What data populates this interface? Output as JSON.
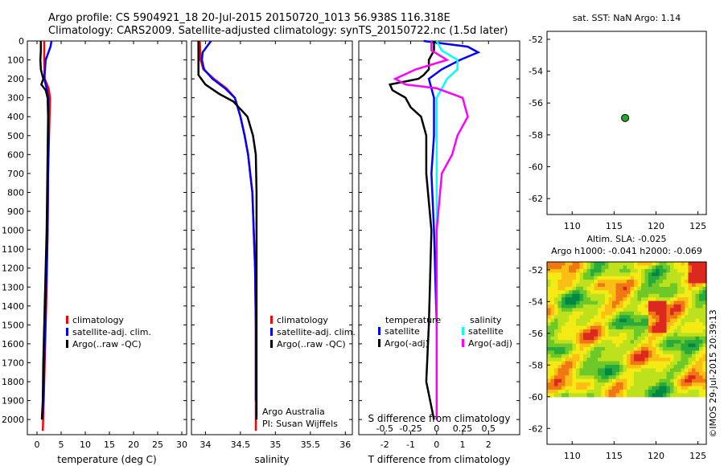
{
  "header": {
    "line1": "Argo profile: CS 5904921_18 20-Jul-2015 20150720_1013 56.938S 116.318E",
    "line2": "Climatology: CARS2009. Satellite-adjusted climatology: synTS_20150722.nc (1.5d later)"
  },
  "colors": {
    "climatology": "#ff0000",
    "satellite": "#0000ff",
    "argo": "#000000",
    "sat_salinity": "#00ffff",
    "argo_salinity": "#ff00ff",
    "float_marker": "#22aa22"
  },
  "chart_data": [
    {
      "id": "temperature",
      "type": "line",
      "xlabel": "temperature (deg C)",
      "ylabel": "",
      "xlim": [
        -2,
        31
      ],
      "ylim": [
        2080,
        0
      ],
      "xticks": [
        0,
        5,
        10,
        15,
        20,
        25,
        30
      ],
      "yticks": [
        0,
        100,
        200,
        300,
        400,
        500,
        600,
        700,
        800,
        900,
        1000,
        1100,
        1200,
        1300,
        1400,
        1500,
        1600,
        1700,
        1800,
        1900,
        2000
      ],
      "legend": [
        "climatology",
        "satellite-adj. clim.",
        "Argo(..raw -QC)"
      ],
      "series": [
        {
          "name": "climatology",
          "points": [
            [
              1.5,
              0
            ],
            [
              1.5,
              100
            ],
            [
              1.6,
              200
            ],
            [
              2.4,
              250
            ],
            [
              2.7,
              300
            ],
            [
              2.6,
              400
            ],
            [
              2.5,
              500
            ],
            [
              2.3,
              700
            ],
            [
              2.2,
              1000
            ],
            [
              2.0,
              1300
            ],
            [
              1.7,
              1600
            ],
            [
              1.4,
              1900
            ],
            [
              1.2,
              2060
            ]
          ]
        },
        {
          "name": "satellite-adj. clim.",
          "points": [
            [
              3.0,
              0
            ],
            [
              2.8,
              30
            ],
            [
              1.8,
              100
            ],
            [
              1.5,
              200
            ],
            [
              2.0,
              250
            ],
            [
              2.3,
              300
            ],
            [
              2.4,
              500
            ],
            [
              2.3,
              700
            ],
            [
              2.2,
              1000
            ],
            [
              1.9,
              1300
            ],
            [
              1.6,
              1600
            ],
            [
              1.3,
              1900
            ],
            [
              1.1,
              2000
            ]
          ]
        },
        {
          "name": "Argo(..raw -QC)",
          "points": [
            [
              0.8,
              0
            ],
            [
              0.8,
              50
            ],
            [
              0.7,
              100
            ],
            [
              0.8,
              150
            ],
            [
              1.3,
              200
            ],
            [
              0.9,
              230
            ],
            [
              1.8,
              260
            ],
            [
              2.2,
              300
            ],
            [
              2.3,
              400
            ],
            [
              2.2,
              600
            ],
            [
              2.1,
              800
            ],
            [
              2.0,
              1000
            ],
            [
              1.8,
              1200
            ],
            [
              1.5,
              1500
            ],
            [
              1.3,
              1700
            ],
            [
              1.2,
              1900
            ],
            [
              1.0,
              2000
            ]
          ]
        }
      ]
    },
    {
      "id": "salinity",
      "type": "line",
      "xlabel": "salinity",
      "ylabel": "",
      "xlim": [
        33.8,
        36.1
      ],
      "ylim": [
        2080,
        0
      ],
      "xticks": [
        34,
        34.5,
        35,
        35.5,
        36
      ],
      "legend": [
        "climatology",
        "satellite-adj. clim.",
        "Argo(..raw -QC)"
      ],
      "annotation": [
        "Argo Australia",
        "PI: Susan Wijffels"
      ],
      "series": [
        {
          "name": "climatology",
          "points": [
            [
              33.92,
              0
            ],
            [
              33.93,
              100
            ],
            [
              33.97,
              150
            ],
            [
              34.12,
              200
            ],
            [
              34.3,
              250
            ],
            [
              34.42,
              300
            ],
            [
              34.5,
              400
            ],
            [
              34.56,
              500
            ],
            [
              34.61,
              600
            ],
            [
              34.64,
              700
            ],
            [
              34.67,
              800
            ],
            [
              34.69,
              1000
            ],
            [
              34.71,
              1200
            ],
            [
              34.72,
              1500
            ],
            [
              34.72,
              2060
            ]
          ]
        },
        {
          "name": "satellite-adj. clim.",
          "points": [
            [
              34.08,
              0
            ],
            [
              34.02,
              30
            ],
            [
              33.96,
              60
            ],
            [
              33.95,
              100
            ],
            [
              33.98,
              150
            ],
            [
              34.1,
              200
            ],
            [
              34.28,
              250
            ],
            [
              34.42,
              300
            ],
            [
              34.5,
              400
            ],
            [
              34.56,
              500
            ],
            [
              34.61,
              600
            ],
            [
              34.64,
              700
            ],
            [
              34.67,
              800
            ],
            [
              34.69,
              1000
            ],
            [
              34.71,
              1200
            ],
            [
              34.72,
              1500
            ],
            [
              34.72,
              1900
            ]
          ]
        },
        {
          "name": "Argo(..raw -QC)",
          "points": [
            [
              33.9,
              0
            ],
            [
              33.9,
              100
            ],
            [
              33.9,
              180
            ],
            [
              34.0,
              230
            ],
            [
              34.2,
              280
            ],
            [
              34.4,
              320
            ],
            [
              34.6,
              400
            ],
            [
              34.68,
              500
            ],
            [
              34.72,
              600
            ],
            [
              34.73,
              800
            ],
            [
              34.73,
              1000
            ],
            [
              34.73,
              1500
            ],
            [
              34.73,
              2000
            ]
          ]
        }
      ]
    },
    {
      "id": "differences",
      "type": "line",
      "xlabel": "T difference from climatology",
      "xlabel_top": "S difference from climatology",
      "xlim": [
        -3,
        3.2
      ],
      "ylim": [
        2080,
        0
      ],
      "xticks": [
        -2,
        -1,
        0,
        1,
        2
      ],
      "xticks_s": [
        "-0.5",
        "-0.25",
        "0",
        "0.25",
        "0.5"
      ],
      "legend_headers": [
        "temperature",
        "salinity"
      ],
      "legend": [
        "satellite",
        "Argo(-adj)",
        "satellite",
        "Argo(-adj)"
      ],
      "series": [
        {
          "name": "satellite",
          "quantity": "temperature",
          "points": [
            [
              -0.5,
              0
            ],
            [
              1.2,
              30
            ],
            [
              1.6,
              60
            ],
            [
              0.9,
              100
            ],
            [
              0.2,
              150
            ],
            [
              -0.3,
              200
            ],
            [
              -0.2,
              250
            ],
            [
              -0.1,
              300
            ],
            [
              -0.1,
              500
            ],
            [
              -0.2,
              700
            ],
            [
              -0.1,
              1000
            ],
            [
              0.0,
              1500
            ],
            [
              0.0,
              2000
            ]
          ]
        },
        {
          "name": "Argo(-adj)",
          "quantity": "temperature",
          "points": [
            [
              -0.1,
              0
            ],
            [
              -0.1,
              50
            ],
            [
              -0.3,
              100
            ],
            [
              -0.3,
              150
            ],
            [
              -0.5,
              180
            ],
            [
              -0.7,
              200
            ],
            [
              -1.8,
              230
            ],
            [
              -1.7,
              260
            ],
            [
              -1.2,
              300
            ],
            [
              -1.0,
              350
            ],
            [
              -0.6,
              400
            ],
            [
              -0.4,
              500
            ],
            [
              -0.4,
              700
            ],
            [
              -0.2,
              1000
            ],
            [
              -0.3,
              1500
            ],
            [
              -0.4,
              1800
            ],
            [
              -0.1,
              2000
            ]
          ]
        },
        {
          "name": "satellite",
          "quantity": "salinity",
          "points": [
            [
              0.0,
              0
            ],
            [
              0.05,
              50
            ],
            [
              0.2,
              100
            ],
            [
              0.2,
              150
            ],
            [
              0.1,
              200
            ],
            [
              0.0,
              300
            ],
            [
              0.0,
              500
            ],
            [
              0.0,
              1000
            ],
            [
              0.0,
              1500
            ],
            [
              0.0,
              2000
            ]
          ]
        },
        {
          "name": "Argo(-adj)",
          "quantity": "salinity",
          "points": [
            [
              -0.05,
              0
            ],
            [
              -0.05,
              50
            ],
            [
              0.1,
              100
            ],
            [
              -0.2,
              150
            ],
            [
              -0.4,
              200
            ],
            [
              -0.3,
              230
            ],
            [
              0.0,
              250
            ],
            [
              0.25,
              300
            ],
            [
              0.3,
              400
            ],
            [
              0.2,
              500
            ],
            [
              0.15,
              600
            ],
            [
              0.05,
              700
            ],
            [
              0.0,
              1000
            ],
            [
              0.0,
              2000
            ]
          ]
        }
      ]
    },
    {
      "id": "position",
      "type": "scatter",
      "title": "sat. SST: NaN Argo: 1.14",
      "xlim": [
        107,
        126
      ],
      "ylim": [
        -63,
        -51.5
      ],
      "xticks": [
        110,
        115,
        120,
        125
      ],
      "yticks": [
        -52,
        -54,
        -56,
        -58,
        -60,
        -62
      ],
      "points": [
        [
          116.318,
          -56.938
        ]
      ]
    },
    {
      "id": "sla_map",
      "type": "heatmap",
      "title": "Altim. SLA: -0.025",
      "subtitle": "Argo h1000: -0.041 h2000: -0.069",
      "xlim": [
        107,
        126
      ],
      "ylim": [
        -63,
        -51.5
      ],
      "data_ylim": [
        -60,
        -51.5
      ],
      "xticks": [
        110,
        115,
        120,
        125
      ],
      "yticks": [
        -52,
        -54,
        -56,
        -58,
        -60,
        -62
      ],
      "side_label": "©IMOS 29-Jul-2015 20:39:13"
    }
  ]
}
